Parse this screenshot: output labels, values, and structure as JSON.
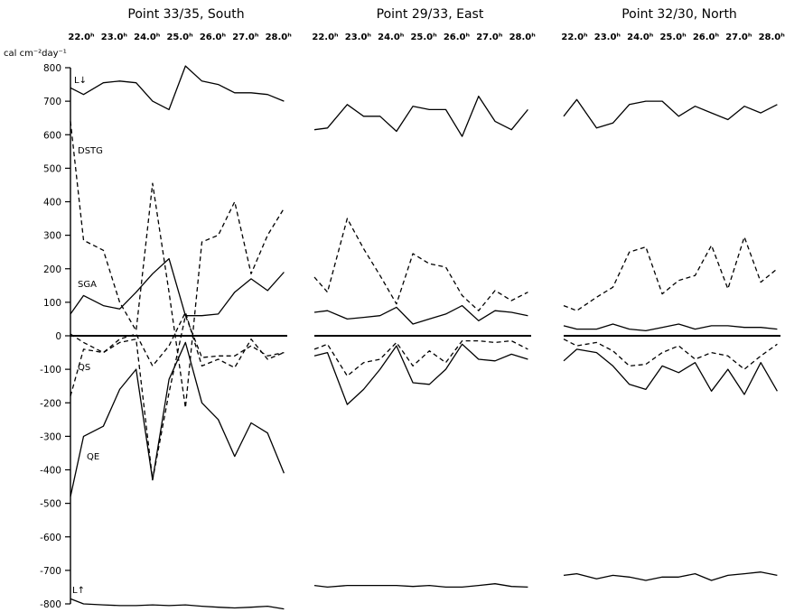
{
  "chart_data": {
    "type": "line",
    "y_unit": "cal cm⁻²day⁻¹",
    "ylim": [
      -800,
      800
    ],
    "yticks": [
      "800",
      "700",
      "600",
      "500",
      "400",
      "300",
      "200",
      "100",
      "0",
      "-100",
      "-200",
      "-300",
      "-400",
      "-500",
      "-600",
      "-700",
      "-800"
    ],
    "xticks": [
      "22.0ʰ",
      "23.0ʰ",
      "24.0ʰ",
      "25.0ʰ",
      "26.0ʰ",
      "27.0ʰ",
      "28.0ʰ"
    ],
    "x_range": [
      22.0,
      28.6
    ],
    "panels": [
      {
        "title": "Point 33/35,   South",
        "series": [
          {
            "name": "L↓",
            "style": "solid",
            "x": [
              22.0,
              22.4,
              23.0,
              23.5,
              24.0,
              24.5,
              25.0,
              25.5,
              26.0,
              26.5,
              27.0,
              27.5,
              28.0,
              28.5
            ],
            "y": [
              740,
              720,
              755,
              760,
              755,
              700,
              675,
              805,
              760,
              750,
              725,
              725,
              720,
              700
            ]
          },
          {
            "name": "DSTG",
            "style": "dashed",
            "x": [
              22.0,
              22.4,
              23.0,
              23.5,
              24.0,
              24.5,
              25.0,
              25.5,
              26.0,
              26.5,
              27.0,
              27.5,
              28.0,
              28.5
            ],
            "y": [
              640,
              285,
              255,
              100,
              15,
              455,
              130,
              -215,
              280,
              300,
              400,
              185,
              300,
              380
            ]
          },
          {
            "name": "SGA",
            "style": "solid",
            "x": [
              22.0,
              22.4,
              23.0,
              23.5,
              24.0,
              24.5,
              25.0,
              25.5,
              26.0,
              26.5,
              27.0,
              27.5,
              28.0,
              28.5
            ],
            "y": [
              65,
              120,
              90,
              80,
              130,
              185,
              230,
              60,
              60,
              65,
              130,
              170,
              135,
              190
            ]
          },
          {
            "name": "",
            "style": "dashed",
            "x": [
              22.0,
              22.4,
              23.0,
              23.5,
              24.0,
              24.5,
              25.0,
              25.5,
              26.0,
              26.5,
              27.0,
              27.5,
              28.0,
              28.5
            ],
            "y": [
              5,
              -20,
              -50,
              -10,
              5,
              -90,
              -30,
              70,
              -90,
              -70,
              -95,
              -10,
              -70,
              -50
            ]
          },
          {
            "name": "QS",
            "style": "dashed",
            "x": [
              22.0,
              22.4,
              23.0,
              23.5,
              24.0,
              24.5,
              25.0,
              25.5,
              26.0,
              26.5,
              27.0,
              27.5,
              28.0,
              28.5
            ],
            "y": [
              -180,
              -40,
              -50,
              -20,
              -10,
              -430,
              -170,
              60,
              -65,
              -60,
              -60,
              -30,
              -60,
              -50
            ]
          },
          {
            "name": "QE",
            "style": "solid",
            "x": [
              22.0,
              22.4,
              23.0,
              23.5,
              24.0,
              24.5,
              25.0,
              25.5,
              26.0,
              26.5,
              27.0,
              27.5,
              28.0,
              28.5
            ],
            "y": [
              -480,
              -300,
              -270,
              -160,
              -100,
              -430,
              -130,
              -20,
              -200,
              -250,
              -360,
              -260,
              -290,
              -410
            ]
          },
          {
            "name": "L↑",
            "style": "solid",
            "x": [
              22.0,
              22.4,
              23.0,
              23.5,
              24.0,
              24.5,
              25.0,
              25.5,
              26.0,
              26.5,
              27.0,
              27.5,
              28.0,
              28.5
            ],
            "y": [
              -785,
              -800,
              -803,
              -805,
              -805,
              -803,
              -805,
              -803,
              -807,
              -810,
              -812,
              -810,
              -807,
              -815
            ]
          }
        ]
      },
      {
        "title": "Point 29/33,   East",
        "series": [
          {
            "name": "",
            "style": "solid",
            "x": [
              22.0,
              22.4,
              23.0,
              23.5,
              24.0,
              24.5,
              25.0,
              25.5,
              26.0,
              26.5,
              27.0,
              27.5,
              28.0,
              28.5
            ],
            "y": [
              615,
              620,
              690,
              655,
              655,
              610,
              685,
              675,
              675,
              595,
              715,
              640,
              615,
              675
            ]
          },
          {
            "name": "",
            "style": "dashed",
            "x": [
              22.0,
              22.4,
              23.0,
              23.5,
              24.0,
              24.5,
              25.0,
              25.5,
              26.0,
              26.5,
              27.0,
              27.5,
              28.0,
              28.5
            ],
            "y": [
              175,
              130,
              350,
              260,
              180,
              95,
              245,
              215,
              205,
              120,
              75,
              135,
              105,
              130
            ]
          },
          {
            "name": "",
            "style": "solid",
            "x": [
              22.0,
              22.4,
              23.0,
              23.5,
              24.0,
              24.5,
              25.0,
              25.5,
              26.0,
              26.5,
              27.0,
              27.5,
              28.0,
              28.5
            ],
            "y": [
              70,
              75,
              50,
              55,
              60,
              85,
              35,
              50,
              65,
              90,
              45,
              75,
              70,
              60
            ]
          },
          {
            "name": "",
            "style": "dashed",
            "x": [
              22.0,
              22.4,
              23.0,
              23.5,
              24.0,
              24.5,
              25.0,
              25.5,
              26.0,
              26.5,
              27.0,
              27.5,
              28.0,
              28.5
            ],
            "y": [
              -40,
              -25,
              -120,
              -80,
              -70,
              -20,
              -90,
              -45,
              -80,
              -15,
              -15,
              -20,
              -15,
              -40
            ]
          },
          {
            "name": "",
            "style": "solid",
            "x": [
              22.0,
              22.4,
              23.0,
              23.5,
              24.0,
              24.5,
              25.0,
              25.5,
              26.0,
              26.5,
              27.0,
              27.5,
              28.0,
              28.5
            ],
            "y": [
              -60,
              -50,
              -205,
              -160,
              -100,
              -30,
              -140,
              -145,
              -100,
              -25,
              -70,
              -75,
              -55,
              -70
            ]
          },
          {
            "name": "",
            "style": "solid",
            "x": [
              22.0,
              22.4,
              23.0,
              23.5,
              24.0,
              24.5,
              25.0,
              25.5,
              26.0,
              26.5,
              27.0,
              27.5,
              28.0,
              28.5
            ],
            "y": [
              -745,
              -750,
              -745,
              -745,
              -745,
              -745,
              -748,
              -745,
              -750,
              -750,
              -745,
              -740,
              -748,
              -750
            ]
          }
        ]
      },
      {
        "title": "Point 32/30,   North",
        "series": [
          {
            "name": "",
            "style": "solid",
            "x": [
              22.0,
              22.4,
              23.0,
              23.5,
              24.0,
              24.5,
              25.0,
              25.5,
              26.0,
              26.5,
              27.0,
              27.5,
              28.0,
              28.5
            ],
            "y": [
              655,
              705,
              620,
              635,
              690,
              700,
              700,
              655,
              685,
              665,
              645,
              685,
              665,
              690
            ]
          },
          {
            "name": "",
            "style": "dashed",
            "x": [
              22.0,
              22.4,
              23.0,
              23.5,
              24.0,
              24.5,
              25.0,
              25.5,
              26.0,
              26.5,
              27.0,
              27.5,
              28.0,
              28.5
            ],
            "y": [
              90,
              75,
              115,
              145,
              250,
              265,
              125,
              165,
              180,
              270,
              140,
              295,
              160,
              200
            ]
          },
          {
            "name": "",
            "style": "solid",
            "x": [
              22.0,
              22.4,
              23.0,
              23.5,
              24.0,
              24.5,
              25.0,
              25.5,
              26.0,
              26.5,
              27.0,
              27.5,
              28.0,
              28.5
            ],
            "y": [
              30,
              20,
              20,
              35,
              20,
              15,
              25,
              35,
              20,
              30,
              30,
              25,
              25,
              20
            ]
          },
          {
            "name": "",
            "style": "dashed",
            "x": [
              22.0,
              22.4,
              23.0,
              23.5,
              24.0,
              24.5,
              25.0,
              25.5,
              26.0,
              26.5,
              27.0,
              27.5,
              28.0,
              28.5
            ],
            "y": [
              -10,
              -30,
              -20,
              -45,
              -90,
              -85,
              -50,
              -30,
              -70,
              -50,
              -60,
              -100,
              -60,
              -25
            ]
          },
          {
            "name": "",
            "style": "solid",
            "x": [
              22.0,
              22.4,
              23.0,
              23.5,
              24.0,
              24.5,
              25.0,
              25.5,
              26.0,
              26.5,
              27.0,
              27.5,
              28.0,
              28.5
            ],
            "y": [
              -75,
              -40,
              -50,
              -90,
              -145,
              -160,
              -90,
              -110,
              -80,
              -165,
              -100,
              -175,
              -80,
              -165
            ]
          },
          {
            "name": "",
            "style": "solid",
            "x": [
              22.0,
              22.4,
              23.0,
              23.5,
              24.0,
              24.5,
              25.0,
              25.5,
              26.0,
              26.5,
              27.0,
              27.5,
              28.0,
              28.5
            ],
            "y": [
              -715,
              -710,
              -725,
              -715,
              -720,
              -730,
              -720,
              -720,
              -710,
              -730,
              -715,
              -710,
              -705,
              -715
            ]
          }
        ]
      }
    ]
  }
}
